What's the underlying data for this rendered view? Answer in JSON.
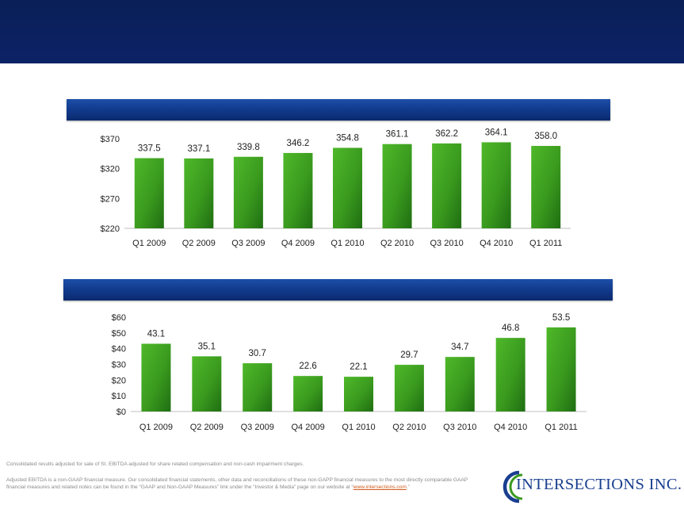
{
  "chart_data": [
    {
      "type": "bar",
      "title": "",
      "categories": [
        "Q1 2009",
        "Q2 2009",
        "Q3 2009",
        "Q4 2009",
        "Q1 2010",
        "Q2 2010",
        "Q3 2010",
        "Q4 2010",
        "Q1 2011"
      ],
      "values": [
        337.5,
        337.1,
        339.8,
        346.2,
        354.8,
        361.1,
        362.2,
        364.1,
        358.0
      ],
      "value_labels": [
        "337.5",
        "337.1",
        "339.8",
        "346.2",
        "354.8",
        "361.1",
        "362.2",
        "364.1",
        "358.0"
      ],
      "ylim": [
        220,
        370
      ],
      "y_ticks": [
        220,
        270,
        320,
        370
      ],
      "y_tick_labels": [
        "$220",
        "$270",
        "$320",
        "$370"
      ],
      "grid": false,
      "bar_color": "#3a9a1e"
    },
    {
      "type": "bar",
      "title": "",
      "categories": [
        "Q1 2009",
        "Q2 2009",
        "Q3 2009",
        "Q4 2009",
        "Q1 2010",
        "Q2 2010",
        "Q3 2010",
        "Q4 2010",
        "Q1 2011"
      ],
      "values": [
        43.1,
        35.1,
        30.7,
        22.6,
        22.1,
        29.7,
        34.7,
        46.8,
        53.5
      ],
      "value_labels": [
        "43.1",
        "35.1",
        "30.7",
        "22.6",
        "22.1",
        "29.7",
        "34.7",
        "46.8",
        "53.5"
      ],
      "ylim": [
        0,
        60
      ],
      "y_ticks": [
        0,
        10,
        20,
        30,
        40,
        50,
        60
      ],
      "y_tick_labels": [
        "$0",
        "$10",
        "$20",
        "$30",
        "$40",
        "$50",
        "$60"
      ],
      "grid": false,
      "bar_color": "#3a9a1e"
    }
  ],
  "footer": {
    "note1": "Consolidated results adjusted for sale of SI. EBITDA adjusted for share related compensation and non-cash impairment charges.",
    "note2_text": "Adjusted EBITDA is a non-GAAP financial measure. Our consolidated financial statements, other data and reconciliations of these non-GAPP financial measures to the most directly comparable GAAP financial measures and related notes can be found in the “GAAP and Non-GAAP Measures” link under the “Investor & Media” page on our website at “",
    "link": "www.intersections.com",
    "note2_end": ".”"
  },
  "logo": {
    "text": "INTERSECTIONS INC.",
    "colors": {
      "blue": "#1a3f8f",
      "green": "#3a9a1e"
    }
  }
}
